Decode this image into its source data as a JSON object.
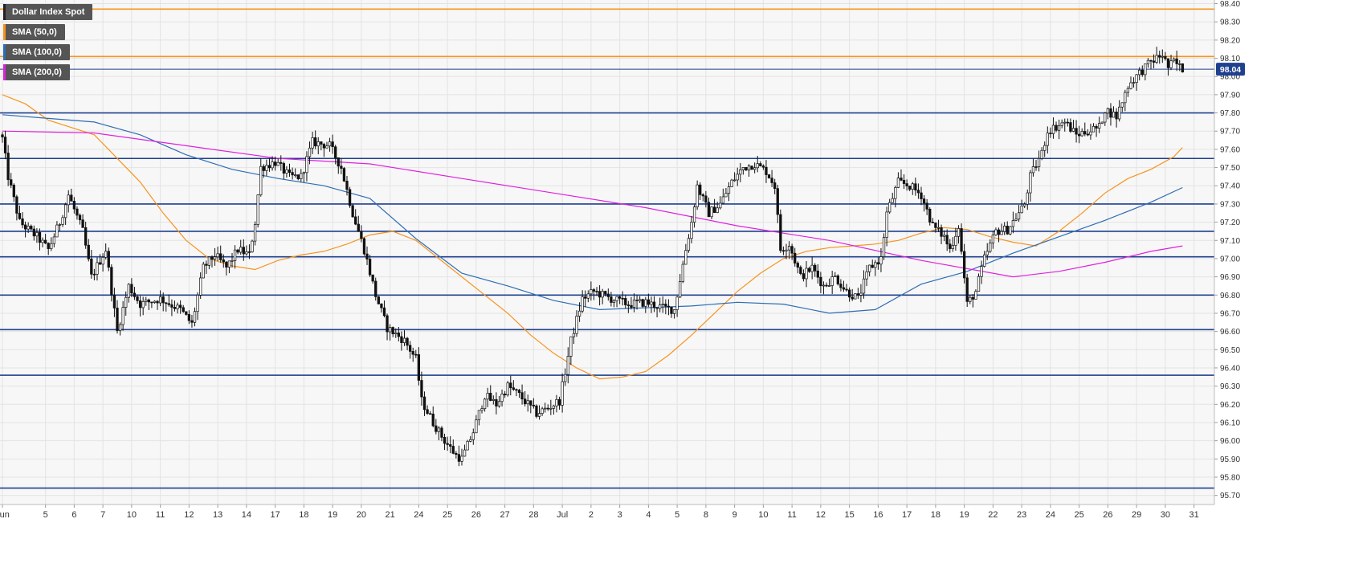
{
  "legend": [
    {
      "label": "Dollar Index Spot",
      "color": "#222222"
    },
    {
      "label": "SMA (50,0)",
      "color": "#f7941d"
    },
    {
      "label": "SMA (100,0)",
      "color": "#2e6db4"
    },
    {
      "label": "SMA (200,0)",
      "color": "#e020e0"
    }
  ],
  "colors": {
    "background": "#f7f7f7",
    "grid": "#e3e3e3",
    "level_line": "#1f3f8f",
    "resistance_line": "#f7941d",
    "current_price_line": "#1f3f8f",
    "price_badge_bg": "#1f3f8f"
  },
  "chart_data": {
    "type": "candlestick",
    "title": "Dollar Index Spot",
    "ylim": [
      95.65,
      98.42
    ],
    "y_ticks": [
      "98.40",
      "98.30",
      "98.20",
      "98.10",
      "98.00",
      "97.90",
      "97.80",
      "97.70",
      "97.60",
      "97.50",
      "97.40",
      "97.30",
      "97.20",
      "97.10",
      "97.00",
      "96.90",
      "96.80",
      "96.70",
      "96.60",
      "96.50",
      "96.40",
      "96.30",
      "96.20",
      "96.10",
      "96.00",
      "95.90",
      "95.80",
      "95.70"
    ],
    "x_ticks": [
      {
        "label": "Jun",
        "index": 0
      },
      {
        "label": "5",
        "index": 15
      },
      {
        "label": "6",
        "index": 25
      },
      {
        "label": "7",
        "index": 35
      },
      {
        "label": "10",
        "index": 45
      },
      {
        "label": "11",
        "index": 55
      },
      {
        "label": "12",
        "index": 65
      },
      {
        "label": "13",
        "index": 75
      },
      {
        "label": "14",
        "index": 85
      },
      {
        "label": "17",
        "index": 95
      },
      {
        "label": "18",
        "index": 105
      },
      {
        "label": "19",
        "index": 115
      },
      {
        "label": "20",
        "index": 125
      },
      {
        "label": "21",
        "index": 135
      },
      {
        "label": "24",
        "index": 145
      },
      {
        "label": "25",
        "index": 155
      },
      {
        "label": "26",
        "index": 165
      },
      {
        "label": "27",
        "index": 175
      },
      {
        "label": "28",
        "index": 185
      },
      {
        "label": "Jul",
        "index": 195
      },
      {
        "label": "2",
        "index": 205
      },
      {
        "label": "3",
        "index": 215
      },
      {
        "label": "4",
        "index": 225
      },
      {
        "label": "5",
        "index": 235
      },
      {
        "label": "8",
        "index": 245
      },
      {
        "label": "9",
        "index": 255
      },
      {
        "label": "10",
        "index": 265
      },
      {
        "label": "11",
        "index": 275
      },
      {
        "label": "12",
        "index": 285
      },
      {
        "label": "15",
        "index": 295
      },
      {
        "label": "16",
        "index": 305
      },
      {
        "label": "17",
        "index": 315
      },
      {
        "label": "18",
        "index": 325
      },
      {
        "label": "19",
        "index": 335
      },
      {
        "label": "22",
        "index": 345
      },
      {
        "label": "23",
        "index": 355
      },
      {
        "label": "24",
        "index": 365
      },
      {
        "label": "25",
        "index": 375
      },
      {
        "label": "26",
        "index": 385
      },
      {
        "label": "29",
        "index": 395
      },
      {
        "label": "30",
        "index": 405
      },
      {
        "label": "31",
        "index": 415
      }
    ],
    "candle_count": 412,
    "price_path": [
      [
        0,
        97.66
      ],
      [
        2,
        97.45
      ],
      [
        6,
        97.2
      ],
      [
        12,
        97.12
      ],
      [
        16,
        97.05
      ],
      [
        20,
        97.2
      ],
      [
        23,
        97.35
      ],
      [
        28,
        97.15
      ],
      [
        31,
        96.9
      ],
      [
        36,
        97.05
      ],
      [
        40,
        96.6
      ],
      [
        44,
        96.85
      ],
      [
        48,
        96.75
      ],
      [
        55,
        96.78
      ],
      [
        62,
        96.72
      ],
      [
        66,
        96.64
      ],
      [
        70,
        96.95
      ],
      [
        74,
        97.02
      ],
      [
        78,
        96.95
      ],
      [
        82,
        97.05
      ],
      [
        86,
        97.02
      ],
      [
        88,
        97.2
      ],
      [
        90,
        97.5
      ],
      [
        95,
        97.53
      ],
      [
        100,
        97.45
      ],
      [
        104,
        97.45
      ],
      [
        108,
        97.64
      ],
      [
        114,
        97.62
      ],
      [
        118,
        97.5
      ],
      [
        122,
        97.25
      ],
      [
        126,
        97.05
      ],
      [
        130,
        96.8
      ],
      [
        134,
        96.62
      ],
      [
        140,
        96.55
      ],
      [
        144,
        96.45
      ],
      [
        146,
        96.22
      ],
      [
        150,
        96.1
      ],
      [
        154,
        96.0
      ],
      [
        158,
        95.92
      ],
      [
        160,
        95.9
      ],
      [
        164,
        96.05
      ],
      [
        168,
        96.25
      ],
      [
        172,
        96.2
      ],
      [
        176,
        96.3
      ],
      [
        180,
        96.25
      ],
      [
        186,
        96.15
      ],
      [
        190,
        96.18
      ],
      [
        194,
        96.22
      ],
      [
        196,
        96.38
      ],
      [
        198,
        96.55
      ],
      [
        202,
        96.78
      ],
      [
        206,
        96.82
      ],
      [
        212,
        96.78
      ],
      [
        218,
        96.75
      ],
      [
        224,
        96.76
      ],
      [
        230,
        96.73
      ],
      [
        234,
        96.72
      ],
      [
        238,
        97.05
      ],
      [
        240,
        97.2
      ],
      [
        242,
        97.4
      ],
      [
        246,
        97.25
      ],
      [
        250,
        97.3
      ],
      [
        254,
        97.42
      ],
      [
        258,
        97.5
      ],
      [
        262,
        97.52
      ],
      [
        266,
        97.48
      ],
      [
        269,
        97.4
      ],
      [
        271,
        97.05
      ],
      [
        274,
        97.08
      ],
      [
        278,
        96.9
      ],
      [
        282,
        96.95
      ],
      [
        286,
        96.85
      ],
      [
        290,
        96.9
      ],
      [
        294,
        96.82
      ],
      [
        298,
        96.78
      ],
      [
        302,
        96.95
      ],
      [
        306,
        97.0
      ],
      [
        308,
        97.25
      ],
      [
        312,
        97.42
      ],
      [
        316,
        97.4
      ],
      [
        320,
        97.35
      ],
      [
        324,
        97.18
      ],
      [
        328,
        97.12
      ],
      [
        330,
        97.05
      ],
      [
        333,
        97.18
      ],
      [
        336,
        96.75
      ],
      [
        339,
        96.82
      ],
      [
        342,
        97.0
      ],
      [
        346,
        97.15
      ],
      [
        350,
        97.16
      ],
      [
        354,
        97.25
      ],
      [
        356,
        97.3
      ],
      [
        358,
        97.45
      ],
      [
        362,
        97.58
      ],
      [
        364,
        97.7
      ],
      [
        370,
        97.75
      ],
      [
        374,
        97.68
      ],
      [
        378,
        97.7
      ],
      [
        382,
        97.72
      ],
      [
        384,
        97.82
      ],
      [
        388,
        97.78
      ],
      [
        392,
        97.95
      ],
      [
        396,
        98.02
      ],
      [
        400,
        98.08
      ],
      [
        404,
        98.12
      ],
      [
        406,
        98.05
      ],
      [
        408,
        98.08
      ],
      [
        411,
        98.04
      ]
    ],
    "series": [
      {
        "name": "SMA (50,0)",
        "color": "#f7941d",
        "points": [
          [
            0,
            97.9
          ],
          [
            8,
            97.85
          ],
          [
            16,
            97.76
          ],
          [
            24,
            97.72
          ],
          [
            32,
            97.68
          ],
          [
            40,
            97.55
          ],
          [
            48,
            97.42
          ],
          [
            56,
            97.25
          ],
          [
            64,
            97.1
          ],
          [
            72,
            97.0
          ],
          [
            80,
            96.96
          ],
          [
            88,
            96.94
          ],
          [
            96,
            96.99
          ],
          [
            104,
            97.02
          ],
          [
            112,
            97.04
          ],
          [
            120,
            97.08
          ],
          [
            128,
            97.13
          ],
          [
            136,
            97.15
          ],
          [
            144,
            97.1
          ],
          [
            152,
            97.0
          ],
          [
            160,
            96.9
          ],
          [
            168,
            96.8
          ],
          [
            176,
            96.7
          ],
          [
            184,
            96.58
          ],
          [
            192,
            96.48
          ],
          [
            200,
            96.4
          ],
          [
            208,
            96.34
          ],
          [
            216,
            96.35
          ],
          [
            224,
            96.38
          ],
          [
            232,
            96.47
          ],
          [
            240,
            96.58
          ],
          [
            248,
            96.7
          ],
          [
            256,
            96.82
          ],
          [
            264,
            96.92
          ],
          [
            272,
            97.0
          ],
          [
            280,
            97.04
          ],
          [
            288,
            97.06
          ],
          [
            296,
            97.07
          ],
          [
            304,
            97.08
          ],
          [
            312,
            97.1
          ],
          [
            320,
            97.14
          ],
          [
            328,
            97.17
          ],
          [
            336,
            97.16
          ],
          [
            344,
            97.12
          ],
          [
            352,
            97.09
          ],
          [
            360,
            97.07
          ],
          [
            368,
            97.15
          ],
          [
            376,
            97.25
          ],
          [
            384,
            97.36
          ],
          [
            392,
            97.44
          ],
          [
            400,
            97.49
          ],
          [
            408,
            97.56
          ],
          [
            411,
            97.61
          ]
        ]
      },
      {
        "name": "SMA (100,0)",
        "color": "#2e6db4",
        "points": [
          [
            0,
            97.79
          ],
          [
            16,
            97.77
          ],
          [
            32,
            97.75
          ],
          [
            48,
            97.68
          ],
          [
            64,
            97.57
          ],
          [
            80,
            97.49
          ],
          [
            96,
            97.44
          ],
          [
            112,
            97.4
          ],
          [
            128,
            97.33
          ],
          [
            144,
            97.11
          ],
          [
            160,
            96.92
          ],
          [
            176,
            96.85
          ],
          [
            192,
            96.77
          ],
          [
            208,
            96.72
          ],
          [
            224,
            96.73
          ],
          [
            240,
            96.74
          ],
          [
            256,
            96.76
          ],
          [
            272,
            96.75
          ],
          [
            288,
            96.7
          ],
          [
            304,
            96.72
          ],
          [
            320,
            96.86
          ],
          [
            336,
            96.93
          ],
          [
            352,
            97.03
          ],
          [
            368,
            97.12
          ],
          [
            384,
            97.21
          ],
          [
            400,
            97.31
          ],
          [
            411,
            97.39
          ]
        ]
      },
      {
        "name": "SMA (200,0)",
        "color": "#e020e0",
        "points": [
          [
            0,
            97.7
          ],
          [
            32,
            97.69
          ],
          [
            64,
            97.62
          ],
          [
            96,
            97.55
          ],
          [
            128,
            97.52
          ],
          [
            160,
            97.44
          ],
          [
            192,
            97.36
          ],
          [
            224,
            97.28
          ],
          [
            256,
            97.18
          ],
          [
            288,
            97.1
          ],
          [
            320,
            96.99
          ],
          [
            352,
            96.9
          ],
          [
            368,
            96.93
          ],
          [
            384,
            96.98
          ],
          [
            400,
            97.04
          ],
          [
            411,
            97.07
          ]
        ]
      }
    ],
    "horizontal_levels": [
      {
        "value": 97.8,
        "color": "#1f3f8f"
      },
      {
        "value": 97.55,
        "color": "#1f3f8f"
      },
      {
        "value": 97.3,
        "color": "#1f3f8f"
      },
      {
        "value": 97.15,
        "color": "#1f3f8f"
      },
      {
        "value": 97.01,
        "color": "#1f3f8f"
      },
      {
        "value": 96.8,
        "color": "#1f3f8f"
      },
      {
        "value": 96.61,
        "color": "#1f3f8f"
      },
      {
        "value": 96.36,
        "color": "#1f3f8f"
      },
      {
        "value": 95.74,
        "color": "#1f3f8f"
      }
    ],
    "resistance_levels": [
      {
        "value": 98.37,
        "color": "#f7941d"
      },
      {
        "value": 98.11,
        "color": "#f7941d"
      }
    ],
    "current_price": "98.04",
    "current_price_value": 98.04,
    "grid": true,
    "legend_placement": "top-left"
  }
}
